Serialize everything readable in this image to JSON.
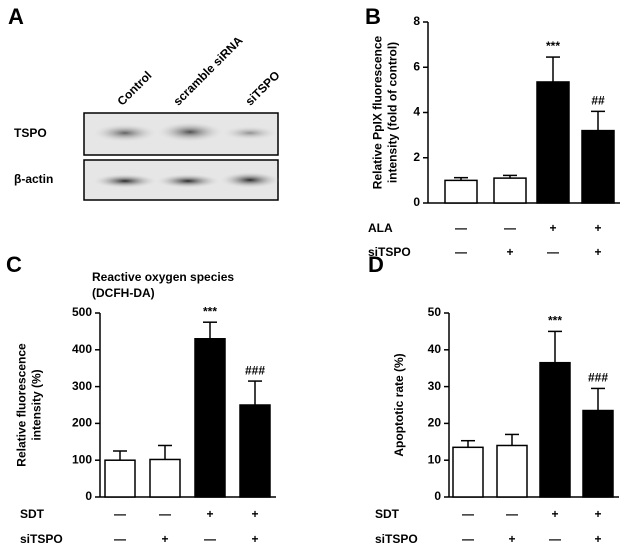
{
  "blot": {
    "label": "A",
    "lanes": [
      "Control",
      "scramble siRNA",
      "siTSPO"
    ],
    "rows": [
      "TSPO",
      "β-actin"
    ]
  },
  "chart_data": [
    {
      "type": "bar",
      "label": "B",
      "y_label": [
        "Relative PpIX fluorescence",
        "intensity (fold of control)"
      ],
      "categories": [
        null,
        null,
        null,
        null
      ],
      "values": [
        1.0,
        1.1,
        5.35,
        3.2
      ],
      "errors": [
        0.12,
        0.12,
        1.1,
        0.85
      ],
      "colors": [
        "#ffffff",
        "#ffffff",
        "#000000",
        "#000000"
      ],
      "annotations": [
        null,
        null,
        "***",
        "##"
      ],
      "ylim": [
        0,
        8
      ],
      "yticks": [
        0,
        2,
        4,
        6,
        8
      ],
      "conditions": [
        {
          "name": "ALA",
          "values": [
            "—",
            "—",
            "+",
            "+"
          ]
        },
        {
          "name": "siTSPO",
          "values": [
            "—",
            "+",
            "—",
            "+"
          ]
        }
      ]
    },
    {
      "type": "bar",
      "label": "C",
      "title": [
        "Reactive oxygen species",
        "(DCFH-DA)"
      ],
      "y_label": [
        "Relative fluorescence",
        "intensity (%)"
      ],
      "categories": [
        null,
        null,
        null,
        null
      ],
      "values": [
        100,
        102,
        430,
        250
      ],
      "errors": [
        25,
        38,
        45,
        65
      ],
      "colors": [
        "#ffffff",
        "#ffffff",
        "#000000",
        "#000000"
      ],
      "annotations": [
        null,
        null,
        "***",
        "###"
      ],
      "ylim": [
        0,
        500
      ],
      "yticks": [
        0,
        100,
        200,
        300,
        400,
        500
      ],
      "conditions": [
        {
          "name": "SDT",
          "values": [
            "—",
            "—",
            "+",
            "+"
          ]
        },
        {
          "name": "siTSPO",
          "values": [
            "—",
            "+",
            "—",
            "+"
          ]
        }
      ]
    },
    {
      "type": "bar",
      "label": "D",
      "y_label": [
        "Apoptotic rate (%)"
      ],
      "categories": [
        null,
        null,
        null,
        null
      ],
      "values": [
        13.5,
        14,
        36.5,
        23.5
      ],
      "errors": [
        1.8,
        3,
        8.5,
        6
      ],
      "colors": [
        "#ffffff",
        "#ffffff",
        "#000000",
        "#000000"
      ],
      "annotations": [
        null,
        null,
        "***",
        "###"
      ],
      "ylim": [
        0,
        50
      ],
      "yticks": [
        0,
        10,
        20,
        30,
        40,
        50
      ],
      "conditions": [
        {
          "name": "SDT",
          "values": [
            "—",
            "—",
            "+",
            "+"
          ]
        },
        {
          "name": "siTSPO",
          "values": [
            "—",
            "+",
            "—",
            "+"
          ]
        }
      ]
    }
  ]
}
